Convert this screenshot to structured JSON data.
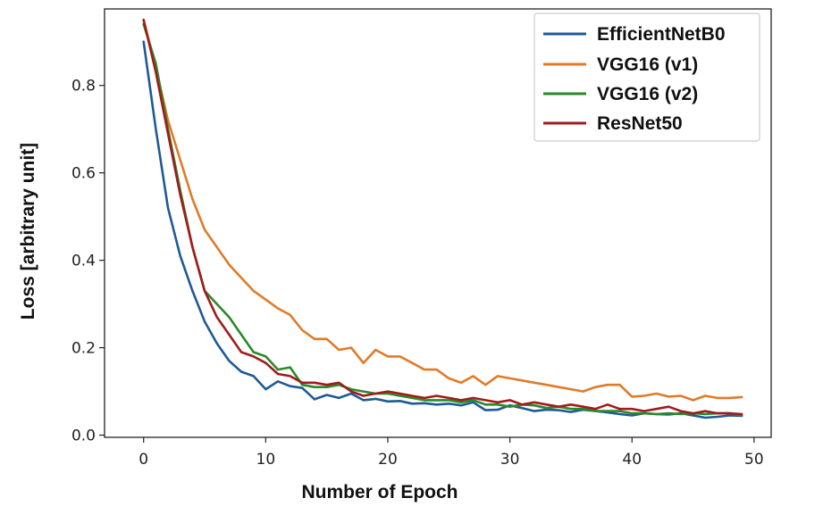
{
  "chart_data": {
    "type": "line",
    "title": "",
    "xlabel": "Number of Epoch",
    "ylabel": "Loss [arbitrary unit]",
    "xlim": [
      -3.2,
      51.4
    ],
    "ylim": [
      -0.005,
      0.975
    ],
    "xticks": [
      0,
      10,
      20,
      30,
      40,
      50
    ],
    "yticks": [
      0.0,
      0.2,
      0.4,
      0.6,
      0.8
    ],
    "xtick_labels": [
      "0",
      "10",
      "20",
      "30",
      "40",
      "50"
    ],
    "ytick_labels": [
      "0.0",
      "0.2",
      "0.4",
      "0.6",
      "0.8"
    ],
    "grid": false,
    "legend_position": "top-right",
    "x": [
      0,
      1,
      2,
      3,
      4,
      5,
      6,
      7,
      8,
      9,
      10,
      11,
      12,
      13,
      14,
      15,
      16,
      17,
      18,
      19,
      20,
      21,
      22,
      23,
      24,
      25,
      26,
      27,
      28,
      29,
      30,
      31,
      32,
      33,
      34,
      35,
      36,
      37,
      38,
      39,
      40,
      41,
      42,
      43,
      44,
      45,
      46,
      47,
      48,
      49
    ],
    "series": [
      {
        "name": "EfficientNetB0",
        "color": "#1f5a96",
        "values": [
          0.9,
          0.7,
          0.52,
          0.41,
          0.33,
          0.26,
          0.21,
          0.17,
          0.145,
          0.135,
          0.105,
          0.123,
          0.112,
          0.108,
          0.082,
          0.092,
          0.085,
          0.095,
          0.08,
          0.083,
          0.077,
          0.078,
          0.072,
          0.073,
          0.07,
          0.072,
          0.068,
          0.075,
          0.057,
          0.058,
          0.068,
          0.062,
          0.055,
          0.058,
          0.057,
          0.053,
          0.058,
          0.055,
          0.052,
          0.048,
          0.045,
          0.05,
          0.048,
          0.047,
          0.05,
          0.045,
          0.04,
          0.042,
          0.045,
          0.044
        ]
      },
      {
        "name": "VGG16 (v1)",
        "color": "#e07b28",
        "values": [
          0.95,
          0.84,
          0.72,
          0.63,
          0.54,
          0.47,
          0.43,
          0.39,
          0.36,
          0.33,
          0.31,
          0.29,
          0.275,
          0.24,
          0.22,
          0.22,
          0.195,
          0.2,
          0.165,
          0.195,
          0.18,
          0.18,
          0.165,
          0.15,
          0.15,
          0.13,
          0.12,
          0.135,
          0.115,
          0.135,
          0.13,
          0.125,
          0.12,
          0.115,
          0.11,
          0.105,
          0.1,
          0.11,
          0.115,
          0.115,
          0.088,
          0.09,
          0.095,
          0.088,
          0.09,
          0.08,
          0.09,
          0.085,
          0.085,
          0.087
        ]
      },
      {
        "name": "VGG16 (v2)",
        "color": "#2a8a2a",
        "values": [
          0.94,
          0.85,
          0.7,
          0.56,
          0.43,
          0.33,
          0.3,
          0.27,
          0.23,
          0.19,
          0.18,
          0.15,
          0.155,
          0.115,
          0.11,
          0.11,
          0.115,
          0.105,
          0.1,
          0.095,
          0.095,
          0.09,
          0.085,
          0.08,
          0.08,
          0.08,
          0.075,
          0.08,
          0.07,
          0.07,
          0.065,
          0.07,
          0.068,
          0.062,
          0.065,
          0.06,
          0.06,
          0.055,
          0.055,
          0.055,
          0.05,
          0.05,
          0.048,
          0.05,
          0.048,
          0.05,
          0.048,
          0.05,
          0.05,
          0.045
        ]
      },
      {
        "name": "ResNet50",
        "color": "#a01c1c",
        "values": [
          0.95,
          0.83,
          0.69,
          0.55,
          0.43,
          0.33,
          0.27,
          0.23,
          0.19,
          0.18,
          0.165,
          0.14,
          0.135,
          0.12,
          0.12,
          0.115,
          0.12,
          0.1,
          0.09,
          0.095,
          0.1,
          0.095,
          0.09,
          0.085,
          0.09,
          0.085,
          0.08,
          0.085,
          0.08,
          0.075,
          0.08,
          0.07,
          0.075,
          0.07,
          0.065,
          0.07,
          0.065,
          0.06,
          0.07,
          0.06,
          0.06,
          0.055,
          0.06,
          0.065,
          0.055,
          0.05,
          0.055,
          0.05,
          0.05,
          0.048
        ]
      }
    ]
  }
}
